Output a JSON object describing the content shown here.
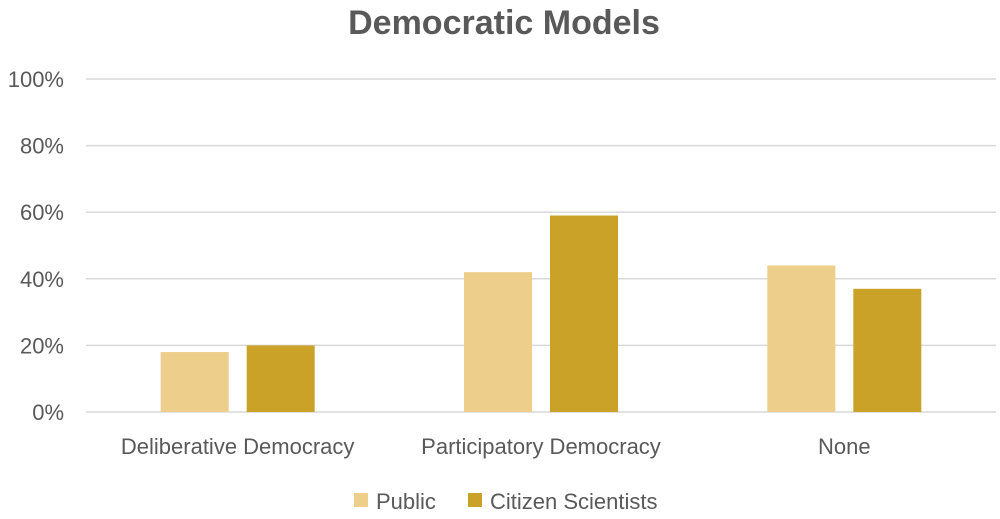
{
  "chart_data": {
    "type": "bar",
    "title": "Democratic Models",
    "xlabel": "",
    "ylabel": "",
    "ylim": [
      0,
      100
    ],
    "yticks": [
      0,
      20,
      40,
      60,
      80,
      100
    ],
    "ytick_labels": [
      "0%",
      "20%",
      "40%",
      "60%",
      "80%",
      "100%"
    ],
    "categories": [
      "Deliberative Democracy",
      "Participatory Democracy",
      "None"
    ],
    "series": [
      {
        "name": "Public",
        "color": "#EDCE8A",
        "values": [
          18,
          42,
          44
        ]
      },
      {
        "name": "Citizen Scientists",
        "color": "#C9A227",
        "values": [
          20,
          59,
          37
        ]
      }
    ],
    "grid": true,
    "legend_position": "bottom"
  }
}
